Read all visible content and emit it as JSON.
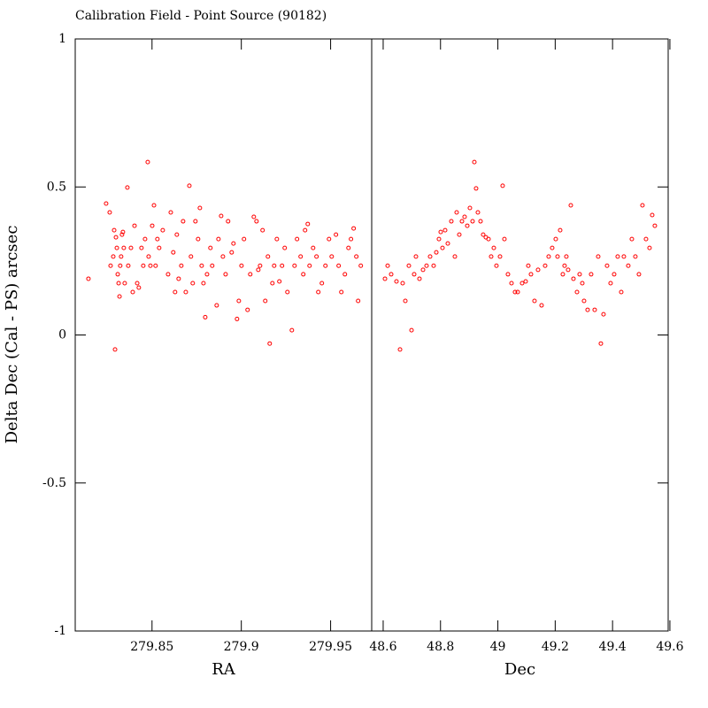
{
  "chart_data": [
    {
      "type": "scatter",
      "title": "Calibration Field - Point Source (90182)",
      "ylabel": "Delta Dec (Cal - PS) arcsec",
      "xlabel": "RA",
      "color": "#ff0000",
      "xlim": [
        279.807,
        279.973
      ],
      "xticks": [
        279.85,
        279.9,
        279.95
      ],
      "ylim": [
        -1,
        1
      ],
      "yticks": [
        -1,
        -0.5,
        0,
        0.5,
        1
      ],
      "series": [
        {
          "x": [
            279.8144,
            279.8243,
            279.8263,
            279.8268,
            279.8283,
            279.8288,
            279.8293,
            279.8298,
            279.8303,
            279.8308,
            279.8313,
            279.8318,
            279.8322,
            279.8327,
            279.8332,
            279.8337,
            279.8342,
            279.8347,
            279.8362,
            279.8367,
            279.8382,
            279.8392,
            279.8402,
            279.8417,
            279.8426,
            279.8441,
            279.8451,
            279.8461,
            279.8476,
            279.8481,
            279.8491,
            279.8501,
            279.8511,
            279.852,
            279.853,
            279.854,
            279.856,
            279.859,
            279.8605,
            279.8619,
            279.8629,
            279.8639,
            279.8649,
            279.8664,
            279.8674,
            279.8689,
            279.8709,
            279.8718,
            279.8728,
            279.8743,
            279.8758,
            279.8768,
            279.8778,
            279.8788,
            279.8798,
            279.8808,
            279.8827,
            279.8837,
            279.8862,
            279.8872,
            279.8887,
            279.8897,
            279.8912,
            279.8926,
            279.8946,
            279.8956,
            279.8976,
            279.8986,
            279.9001,
            279.9015,
            279.9035,
            279.905,
            279.907,
            279.9085,
            279.9095,
            279.9105,
            279.9119,
            279.9134,
            279.9149,
            279.9159,
            279.9174,
            279.9184,
            279.9199,
            279.9213,
            279.9228,
            279.9243,
            279.9258,
            279.9283,
            279.9298,
            279.9312,
            279.9332,
            279.9347,
            279.9357,
            279.9372,
            279.9382,
            279.9402,
            279.9421,
            279.9431,
            279.9451,
            279.9471,
            279.9491,
            279.9506,
            279.953,
            279.9545,
            279.956,
            279.958,
            279.96,
            279.9614,
            279.9629,
            279.9644,
            279.9654,
            279.9669
          ],
          "values": [
            0.19,
            0.444,
            0.414,
            0.234,
            0.265,
            0.354,
            -0.049,
            0.33,
            0.294,
            0.205,
            0.175,
            0.13,
            0.234,
            0.265,
            0.339,
            0.348,
            0.294,
            0.175,
            0.498,
            0.234,
            0.294,
            0.145,
            0.369,
            0.175,
            0.16,
            0.294,
            0.234,
            0.324,
            0.584,
            0.265,
            0.234,
            0.369,
            0.438,
            0.234,
            0.324,
            0.294,
            0.354,
            0.205,
            0.414,
            0.279,
            0.145,
            0.339,
            0.19,
            0.234,
            0.384,
            0.145,
            0.504,
            0.265,
            0.175,
            0.384,
            0.324,
            0.429,
            0.234,
            0.175,
            0.06,
            0.205,
            0.294,
            0.234,
            0.1,
            0.324,
            0.402,
            0.265,
            0.205,
            0.384,
            0.279,
            0.309,
            0.054,
            0.115,
            0.234,
            0.324,
            0.085,
            0.205,
            0.399,
            0.384,
            0.22,
            0.234,
            0.354,
            0.115,
            0.265,
            -0.029,
            0.175,
            0.234,
            0.324,
            0.181,
            0.234,
            0.294,
            0.145,
            0.016,
            0.234,
            0.324,
            0.265,
            0.205,
            0.354,
            0.375,
            0.234,
            0.294,
            0.265,
            0.145,
            0.175,
            0.234,
            0.324,
            0.265,
            0.339,
            0.234,
            0.145,
            0.205,
            0.294,
            0.324,
            0.36,
            0.265,
            0.115,
            0.234
          ]
        }
      ]
    },
    {
      "type": "scatter",
      "xlabel": "Dec",
      "color": "#ff0000",
      "xlim": [
        48.56,
        49.594
      ],
      "xticks": [
        48.6,
        48.8,
        49,
        49.2,
        49.4,
        49.6
      ],
      "ylim": [
        -1,
        1
      ],
      "yticks": [
        -1,
        -0.5,
        0,
        0.5,
        1
      ],
      "series": [
        {
          "x": [
            48.6063,
            48.6156,
            48.6279,
            48.6464,
            48.6588,
            48.668,
            48.6773,
            48.6896,
            48.6989,
            48.7081,
            48.7143,
            48.7266,
            48.739,
            48.7513,
            48.7637,
            48.776,
            48.7853,
            48.7945,
            48.8007,
            48.8069,
            48.8161,
            48.8254,
            48.8377,
            48.8501,
            48.8563,
            48.8655,
            48.8748,
            48.884,
            48.8933,
            48.9025,
            48.9118,
            48.918,
            48.9241,
            48.9303,
            48.9396,
            48.9488,
            48.9581,
            48.9674,
            48.9766,
            48.9859,
            48.9951,
            49.0075,
            49.0167,
            49.0229,
            49.0352,
            49.0476,
            49.0599,
            49.0692,
            49.0846,
            49.097,
            49.1062,
            49.1155,
            49.1278,
            49.1402,
            49.1525,
            49.1649,
            49.1772,
            49.1895,
            49.2019,
            49.2081,
            49.2173,
            49.2266,
            49.2327,
            49.2389,
            49.2451,
            49.2544,
            49.2636,
            49.276,
            49.2852,
            49.2945,
            49.3006,
            49.313,
            49.3253,
            49.3377,
            49.35,
            49.3593,
            49.3685,
            49.3809,
            49.3932,
            49.4056,
            49.4179,
            49.4303,
            49.4395,
            49.4549,
            49.4673,
            49.4796,
            49.492,
            49.5043,
            49.5167,
            49.529,
            49.5383,
            49.5475
          ],
          "values": [
            0.19,
            0.234,
            0.205,
            0.181,
            -0.049,
            0.175,
            0.115,
            0.234,
            0.016,
            0.205,
            0.265,
            0.19,
            0.22,
            0.234,
            0.265,
            0.234,
            0.279,
            0.324,
            0.348,
            0.294,
            0.354,
            0.309,
            0.384,
            0.265,
            0.414,
            0.339,
            0.384,
            0.399,
            0.369,
            0.429,
            0.384,
            0.584,
            0.495,
            0.414,
            0.384,
            0.339,
            0.33,
            0.324,
            0.265,
            0.294,
            0.234,
            0.265,
            0.504,
            0.324,
            0.205,
            0.175,
            0.145,
            0.145,
            0.175,
            0.181,
            0.234,
            0.205,
            0.115,
            0.22,
            0.1,
            0.234,
            0.265,
            0.294,
            0.324,
            0.265,
            0.354,
            0.205,
            0.234,
            0.265,
            0.22,
            0.438,
            0.19,
            0.145,
            0.205,
            0.175,
            0.115,
            0.085,
            0.205,
            0.085,
            0.265,
            -0.029,
            0.07,
            0.234,
            0.175,
            0.205,
            0.265,
            0.145,
            0.265,
            0.234,
            0.324,
            0.265,
            0.205,
            0.438,
            0.324,
            0.294,
            0.405,
            0.369
          ]
        }
      ]
    }
  ]
}
